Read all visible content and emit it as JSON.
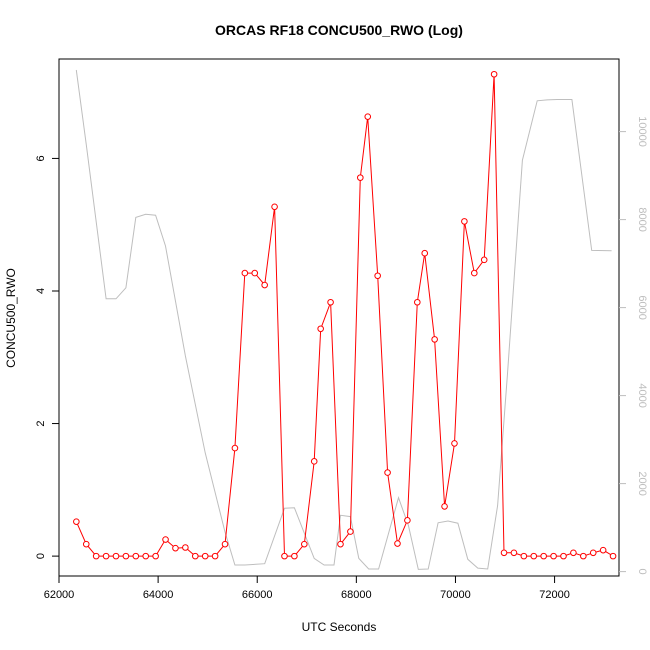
{
  "chart_data": {
    "type": "line",
    "title": "ORCAS RF18 CONCU500_RWO (Log)",
    "xlabel": "UTC Seconds",
    "ylabel": "CONCU500_RWO",
    "xlim": [
      62000,
      73300
    ],
    "ylim": [
      -0.3,
      7.5
    ],
    "y2lim": [
      -100,
      11650
    ],
    "x_ticks": [
      62000,
      64000,
      66000,
      68000,
      70000,
      72000
    ],
    "x_tick_labels": [
      "62000",
      "64000",
      "66000",
      "68000",
      "70000",
      "72000"
    ],
    "y_ticks": [
      0,
      2,
      4,
      6
    ],
    "y_tick_labels": [
      "0",
      "2",
      "4",
      "6"
    ],
    "y2_ticks": [
      0,
      2000,
      4000,
      6000,
      8000,
      10000
    ],
    "y2_tick_labels": [
      "0",
      "2000",
      "4000",
      "6000",
      "8000",
      "10000"
    ],
    "grid": false,
    "series": [
      {
        "name": "",
        "axis": "left",
        "color": "#ff0000",
        "style": "line-with-open-circles",
        "x": [
          62350,
          62550,
          62750,
          62950,
          63150,
          63350,
          63550,
          63750,
          63950,
          64150,
          64350,
          64550,
          64750,
          64950,
          65150,
          65350,
          65550,
          65750,
          65950,
          66150,
          66350,
          66550,
          66750,
          66950,
          67150,
          67280,
          67480,
          67680,
          67880,
          68080,
          68230,
          68430,
          68630,
          68830,
          69030,
          69230,
          69380,
          69580,
          69780,
          69980,
          70180,
          70380,
          70580,
          70780,
          70980,
          71180,
          71380,
          71580,
          71780,
          71980,
          72180,
          72380,
          72580,
          72780,
          72980,
          73180
        ],
        "y": [
          0.52,
          0.18,
          0.0,
          0.0,
          0.0,
          0.0,
          0.0,
          0.0,
          0.0,
          0.25,
          0.12,
          0.13,
          0.0,
          0.0,
          0.0,
          0.18,
          1.63,
          4.27,
          4.27,
          4.09,
          5.27,
          0.0,
          0.0,
          0.18,
          1.43,
          3.43,
          3.83,
          0.18,
          0.37,
          5.71,
          6.63,
          4.23,
          1.26,
          0.19,
          0.54,
          3.83,
          4.57,
          3.27,
          0.75,
          1.7,
          5.05,
          4.27,
          4.47,
          7.27,
          0.05,
          0.05,
          0.0,
          0.0,
          0.0,
          0.0,
          0.0,
          0.05,
          0.0,
          0.05,
          0.09,
          0.0
        ]
      },
      {
        "name": "",
        "axis": "right",
        "color": "#bebebe",
        "style": "line",
        "x": [
          62350,
          62550,
          62950,
          63150,
          63350,
          63550,
          63750,
          63950,
          64150,
          64550,
          64950,
          65350,
          65550,
          65750,
          66150,
          66550,
          66750,
          67150,
          67350,
          67550,
          67680,
          67880,
          68050,
          68250,
          68450,
          68850,
          69050,
          69250,
          69450,
          69650,
          69850,
          70050,
          70250,
          70450,
          70650,
          70850,
          71050,
          71350,
          71650,
          71850,
          72050,
          72350,
          72750,
          73150
        ],
        "y": [
          11400,
          9700,
          6200,
          6200,
          6450,
          8050,
          8120,
          8100,
          7400,
          4900,
          2700,
          900,
          150,
          150,
          180,
          1440,
          1450,
          300,
          150,
          150,
          1280,
          1250,
          300,
          60,
          60,
          1680,
          1050,
          50,
          60,
          1110,
          1150,
          1100,
          280,
          80,
          60,
          1500,
          4500,
          9350,
          10700,
          10720,
          10730,
          10730,
          7300,
          7290
        ]
      }
    ]
  }
}
